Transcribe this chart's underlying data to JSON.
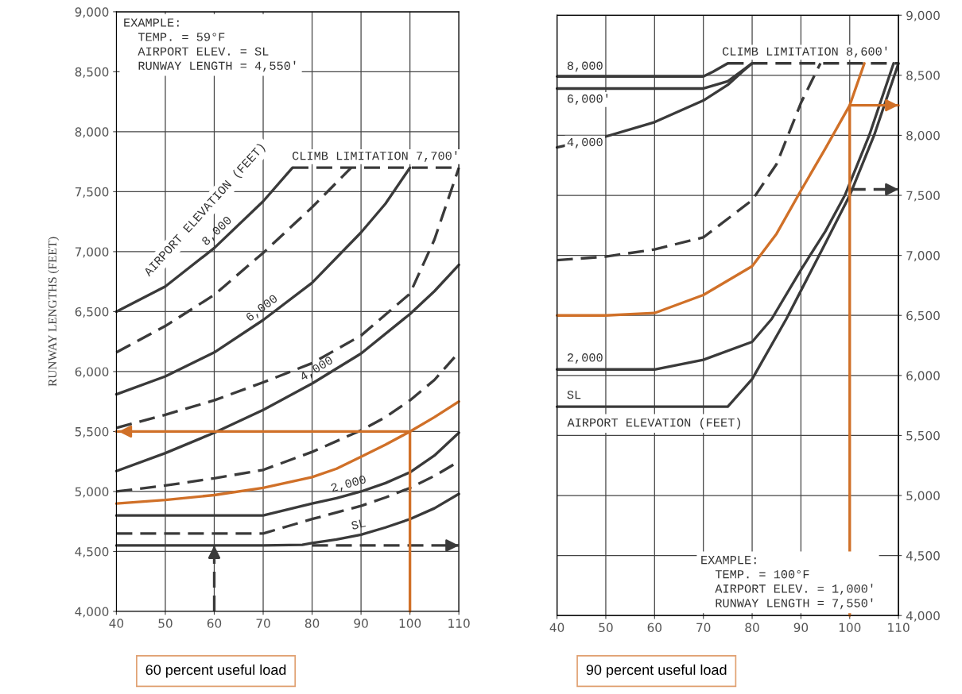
{
  "chart_data": [
    {
      "type": "line",
      "title": "60 percent useful load",
      "ylabel": "RUNWAY LENGTHS (FEET)",
      "xlim": [
        40,
        110
      ],
      "xticks": [
        40,
        50,
        60,
        70,
        80,
        90,
        100,
        110
      ],
      "ylim": [
        4000,
        9000
      ],
      "yticks": [
        {
          "value": 4000,
          "label": "4,000"
        },
        {
          "value": 4500,
          "label": "4,500"
        },
        {
          "value": 5000,
          "label": "5,000"
        },
        {
          "value": 5500,
          "label": "5,500"
        },
        {
          "value": 6000,
          "label": "6,000"
        },
        {
          "value": 6500,
          "label": "6,500"
        },
        {
          "value": 7000,
          "label": "7,000"
        },
        {
          "value": 7500,
          "label": "7,500"
        },
        {
          "value": 8000,
          "label": "8,000"
        },
        {
          "value": 8500,
          "label": "8,500"
        },
        {
          "value": 9000,
          "label": "9,000"
        }
      ],
      "grid": true,
      "annotations": [
        "EXAMPLE:\n  TEMP. = 59°F\n  AIRPORT ELEV. = SL\n  RUNWAY LENGTH = 4,550'",
        "AIRPORT ELEVATION (FEET)",
        {
          "text": "SL",
          "x": 90,
          "y": 4640
        },
        {
          "text": "2,000",
          "x": 88,
          "y": 4980
        },
        {
          "text": "4,000",
          "x": 82,
          "y": 5950
        },
        {
          "text": "6,000",
          "x": 71,
          "y": 6460
        },
        {
          "text": "8,000",
          "x": 62,
          "y": 7110
        }
      ],
      "series": [
        {
          "color": "#3a3a3a",
          "line_style": "solid",
          "x": [
            40,
            50,
            60,
            70,
            78,
            80,
            85,
            90,
            95,
            100,
            105,
            110
          ],
          "values": [
            4550,
            4550,
            4550,
            4550,
            4555,
            4570,
            4600,
            4640,
            4700,
            4770,
            4860,
            4980
          ]
        },
        {
          "color": "#3a3a3a",
          "line_style": "dashed",
          "x": [
            40,
            50,
            60,
            70,
            75,
            80,
            85,
            90,
            95,
            100,
            105,
            110
          ],
          "values": [
            4650,
            4650,
            4650,
            4650,
            4710,
            4770,
            4825,
            4880,
            4950,
            5030,
            5130,
            5250
          ]
        },
        {
          "color": "#3a3a3a",
          "line_style": "solid",
          "x": [
            40,
            50,
            60,
            70,
            75,
            80,
            85,
            90,
            95,
            100,
            105,
            110
          ],
          "values": [
            4800,
            4800,
            4800,
            4800,
            4850,
            4900,
            4945,
            5000,
            5070,
            5160,
            5300,
            5490
          ]
        },
        {
          "color": "#d07028",
          "line_style": "solid",
          "x": [
            40,
            50,
            60,
            70,
            80,
            85,
            90,
            95,
            100,
            105,
            110
          ],
          "values": [
            4900,
            4930,
            4970,
            5030,
            5120,
            5190,
            5290,
            5390,
            5500,
            5620,
            5750
          ]
        },
        {
          "color": "#3a3a3a",
          "line_style": "dashed",
          "x": [
            40,
            50,
            60,
            70,
            80,
            90,
            95,
            100,
            105,
            110
          ],
          "values": [
            5000,
            5050,
            5110,
            5180,
            5330,
            5510,
            5620,
            5760,
            5930,
            6160
          ]
        },
        {
          "color": "#3a3a3a",
          "line_style": "solid",
          "x": [
            40,
            50,
            60,
            70,
            80,
            90,
            100,
            105,
            110
          ],
          "values": [
            5170,
            5320,
            5490,
            5680,
            5900,
            6150,
            6480,
            6670,
            6890
          ]
        },
        {
          "color": "#3a3a3a",
          "line_style": "dashed",
          "x": [
            40,
            50,
            60,
            70,
            80,
            90,
            100,
            105,
            110
          ],
          "values": [
            5530,
            5640,
            5760,
            5910,
            6070,
            6300,
            6650,
            7100,
            7700
          ]
        },
        {
          "color": "#3a3a3a",
          "line_style": "solid",
          "x": [
            40,
            50,
            60,
            70,
            80,
            90,
            95,
            100
          ],
          "values": [
            5810,
            5960,
            6160,
            6430,
            6740,
            7160,
            7400,
            7700
          ]
        },
        {
          "color": "#3a3a3a",
          "line_style": "dashed",
          "x": [
            40,
            50,
            60,
            70,
            80,
            88
          ],
          "values": [
            6160,
            6380,
            6640,
            6990,
            7370,
            7700
          ]
        },
        {
          "color": "#3a3a3a",
          "line_style": "solid",
          "x": [
            40,
            50,
            60,
            70,
            76
          ],
          "values": [
            6500,
            6710,
            7030,
            7420,
            7700
          ]
        },
        {
          "name": "CLIMB LIMITATION 7,700'",
          "color": "#3a3a3a",
          "line_style": "dashed",
          "x": [
            76,
            110
          ],
          "values": [
            7700,
            7700
          ]
        },
        {
          "color": "#3a3a3a",
          "line_style": "dashed",
          "x": [
            60,
            60
          ],
          "values": [
            4000,
            4550
          ]
        },
        {
          "color": "#3a3a3a",
          "line_style": "dashed",
          "x": [
            80,
            110
          ],
          "values": [
            4550,
            4550
          ]
        },
        {
          "color": "#d07028",
          "line_style": "solid",
          "x": [
            100,
            100,
            40
          ],
          "values": [
            4000,
            5500,
            5500
          ]
        }
      ]
    },
    {
      "type": "line",
      "title": "90 percent useful load",
      "xlim": [
        40,
        110
      ],
      "xticks": [
        40,
        50,
        60,
        70,
        80,
        90,
        100,
        110
      ],
      "y2lim": [
        4000,
        9000
      ],
      "y2ticks": [
        {
          "value": 4000,
          "label": "4,000"
        },
        {
          "value": 4500,
          "label": "4,500"
        },
        {
          "value": 5000,
          "label": "5,000"
        },
        {
          "value": 5500,
          "label": "5,500"
        },
        {
          "value": 6000,
          "label": "6,000"
        },
        {
          "value": 6500,
          "label": "6,500"
        },
        {
          "value": 7000,
          "label": "7,000"
        },
        {
          "value": 7500,
          "label": "7,500"
        },
        {
          "value": 8000,
          "label": "8,000"
        },
        {
          "value": 8500,
          "label": "8,500"
        },
        {
          "value": 9000,
          "label": "9,000"
        }
      ],
      "grid": true,
      "annotations": [
        "EXAMPLE:\n  TEMP. = 100°F\n  AIRPORT ELEV. = 1,000'\n  RUNWAY LENGTH = 7,550'",
        "AIRPORT ELEVATION (FEET)"
      ],
      "series": [
        {
          "name": "8,000",
          "axis": "y2",
          "color": "#3a3a3a",
          "line_style": "solid",
          "x": [
            40,
            60,
            70,
            72,
            75
          ],
          "values": [
            8490,
            8490,
            8490,
            8530,
            8600
          ]
        },
        {
          "name": "6,000'",
          "axis": "y2",
          "color": "#3a3a3a",
          "line_style": "solid",
          "x": [
            40,
            60,
            70,
            75,
            78,
            80
          ],
          "values": [
            8390,
            8390,
            8390,
            8450,
            8540,
            8600
          ]
        },
        {
          "name": "4,000",
          "axis": "y2",
          "color": "#3a3a3a",
          "line_style": "solid",
          "x": [
            40,
            50,
            60,
            70,
            75,
            78,
            80
          ],
          "values": [
            7900,
            7990,
            8110,
            8290,
            8420,
            8530,
            8600
          ]
        },
        {
          "axis": "y2",
          "color": "#3a3a3a",
          "line_style": "dashed",
          "x": [
            40,
            50,
            60,
            70,
            80,
            85,
            90,
            94
          ],
          "values": [
            6960,
            6990,
            7050,
            7150,
            7460,
            7760,
            8270,
            8600
          ]
        },
        {
          "axis": "y2",
          "color": "#d07028",
          "line_style": "solid",
          "x": [
            40,
            50,
            60,
            70,
            80,
            85,
            90,
            95,
            100,
            103
          ],
          "values": [
            6500,
            6500,
            6520,
            6670,
            6910,
            7180,
            7540,
            7890,
            8250,
            8600
          ]
        },
        {
          "name": "2,000",
          "axis": "y2",
          "color": "#3a3a3a",
          "line_style": "solid",
          "x": [
            40,
            50,
            60,
            70,
            80,
            84,
            90,
            95,
            99,
            104,
            109
          ],
          "values": [
            6050,
            6050,
            6050,
            6130,
            6280,
            6470,
            6880,
            7200,
            7500,
            8000,
            8600
          ]
        },
        {
          "name": "SL",
          "axis": "y2",
          "color": "#3a3a3a",
          "line_style": "solid",
          "x": [
            40,
            50,
            60,
            70,
            75,
            80,
            87,
            95,
            100,
            105,
            110
          ],
          "values": [
            5740,
            5740,
            5740,
            5740,
            5740,
            5970,
            6470,
            7100,
            7500,
            8000,
            8600
          ]
        },
        {
          "name": "CLIMB LIMITATION 8,600'",
          "axis": "y2",
          "color": "#3a3a3a",
          "line_style": "dashed",
          "x": [
            75,
            110
          ],
          "values": [
            8600,
            8600
          ]
        },
        {
          "axis": "y2",
          "color": "#3a3a3a",
          "line_style": "dashed",
          "x": [
            100,
            110
          ],
          "values": [
            7550,
            7550
          ]
        },
        {
          "axis": "y2",
          "color": "#d07028",
          "line_style": "solid",
          "x": [
            100,
            100,
            110
          ],
          "values": [
            4000,
            8250,
            8250
          ]
        }
      ]
    }
  ]
}
